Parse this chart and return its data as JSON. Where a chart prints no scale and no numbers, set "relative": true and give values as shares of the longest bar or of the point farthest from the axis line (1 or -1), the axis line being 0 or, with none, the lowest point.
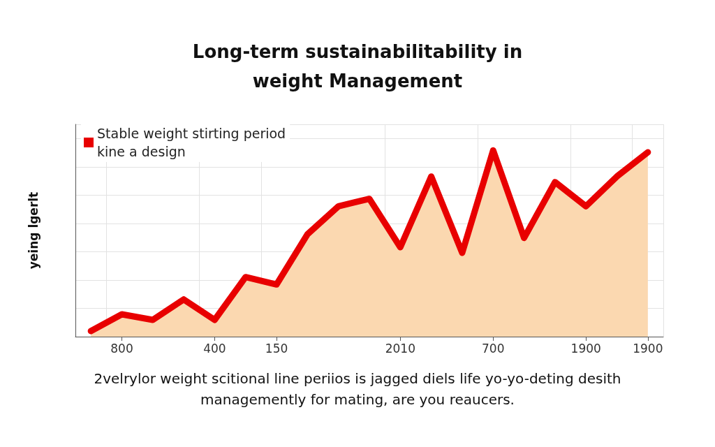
{
  "chart_data": {
    "type": "area",
    "title": "Long-term sustainabilitability in\nweight Management",
    "ylabel": "yeing lgerlt",
    "annotations": [
      "2velrylor weight scitional line periios is jagged diels life yo-yo-deting desith\nmanagemently for mating, are you reaucers."
    ],
    "categories": [
      null,
      "800",
      null,
      null,
      "400",
      null,
      "150",
      null,
      null,
      null,
      "2010",
      null,
      null,
      "700",
      null,
      null,
      "1900",
      null,
      "1900"
    ],
    "relative": true,
    "series": [
      {
        "name": "Stable weight stirting period\nkine a design",
        "color": "#e80000",
        "values": [
          0.03,
          0.12,
          0.09,
          0.2,
          0.09,
          0.32,
          0.28,
          0.55,
          0.7,
          0.74,
          0.48,
          0.86,
          0.45,
          1,
          0.53,
          0.83,
          0.7,
          0.86,
          0.99
        ]
      }
    ],
    "grid": true,
    "legend": "top left",
    "marker": "none",
    "line_style": "solid"
  }
}
